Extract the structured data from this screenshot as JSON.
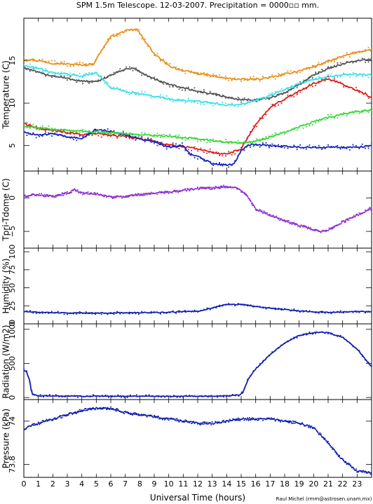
{
  "title": "SPM 1.5m Telescope. 12-03-2007. Precipitation = 0000▫▫ mm.",
  "xlabel": "Universal Time (hours)",
  "credit": "Raul Michel (rmm@astrosen.unam.mx)",
  "x_ticks": [
    "0",
    "1",
    "2",
    "3",
    "4",
    "5",
    "6",
    "7",
    "8",
    "9",
    "10",
    "11",
    "12",
    "13",
    "14",
    "15",
    "16",
    "17",
    "18",
    "19",
    "20",
    "21",
    "22",
    "23"
  ],
  "colors": {
    "orange": "#e8901a",
    "gray": "#555555",
    "cyan": "#3fe0e8",
    "red": "#dd1c1c",
    "blue": "#1424c0",
    "green": "#38d838",
    "purple": "#8e2fd0",
    "navy": "#1020b0"
  },
  "chart_data": [
    {
      "type": "line",
      "ylabel": "Temperature (C)",
      "xlim": [
        0,
        24
      ],
      "ylim": [
        2,
        20
      ],
      "y_ticks": [
        "5",
        "10",
        "15"
      ],
      "y_tick_values": [
        5,
        10,
        15
      ],
      "series": [
        {
          "color": "orange",
          "x": [
            0,
            1,
            2,
            3,
            4,
            4.8,
            5.5,
            6,
            7,
            7.8,
            8.5,
            9,
            10,
            11,
            12,
            13,
            14,
            15,
            16,
            17,
            18,
            19,
            20,
            21,
            22,
            23,
            24
          ],
          "y": [
            15.2,
            15.0,
            14.7,
            14.6,
            14.5,
            14.6,
            16.6,
            17.8,
            18.5,
            18.7,
            17.0,
            15.8,
            14.4,
            13.8,
            13.5,
            13.2,
            12.9,
            12.8,
            12.8,
            13.0,
            13.4,
            13.8,
            14.3,
            14.9,
            15.5,
            16.0,
            16.3
          ]
        },
        {
          "color": "gray",
          "x": [
            0,
            1,
            2,
            3,
            4,
            5,
            6,
            7,
            7.6,
            8,
            9,
            10,
            11,
            12,
            13,
            14,
            15,
            16,
            17,
            18,
            19,
            20,
            21,
            22,
            23,
            24
          ],
          "y": [
            14.2,
            13.6,
            13.2,
            12.9,
            12.6,
            12.5,
            13.3,
            14.0,
            14.1,
            13.7,
            12.8,
            12.2,
            11.8,
            11.4,
            11.1,
            10.7,
            10.4,
            10.4,
            10.6,
            11.2,
            12.2,
            13.3,
            14.1,
            14.6,
            15.0,
            15.2
          ]
        },
        {
          "color": "cyan",
          "x": [
            0,
            1,
            2,
            3,
            4,
            5,
            6,
            7,
            8,
            9,
            10,
            11,
            12,
            13,
            14,
            15,
            16,
            17,
            18,
            19,
            20,
            21,
            22,
            23,
            24
          ],
          "y": [
            14.4,
            14.1,
            13.6,
            13.4,
            13.2,
            13.6,
            11.8,
            11.4,
            11.1,
            10.8,
            10.5,
            10.3,
            10.2,
            10.0,
            9.8,
            9.9,
            10.3,
            10.9,
            11.6,
            12.3,
            12.8,
            13.1,
            13.3,
            13.4,
            13.3
          ]
        },
        {
          "color": "red",
          "x": [
            0,
            1,
            2,
            3,
            4,
            5,
            6,
            7,
            8,
            9,
            10,
            11,
            12,
            13,
            14,
            15,
            15.5,
            16,
            17,
            18,
            19,
            20,
            21,
            22,
            23,
            24
          ],
          "y": [
            7.6,
            7.0,
            6.8,
            6.5,
            6.3,
            6.4,
            6.2,
            6.1,
            5.8,
            5.5,
            5.1,
            4.9,
            4.6,
            4.2,
            4.0,
            4.6,
            6.1,
            7.4,
            9.5,
            10.5,
            11.4,
            12.3,
            12.9,
            12.2,
            11.5,
            10.7
          ]
        },
        {
          "color": "blue",
          "x": [
            0,
            1,
            2,
            3,
            4,
            5,
            6,
            7,
            8,
            9,
            10,
            11,
            11.5,
            12,
            13,
            14,
            14.5,
            15,
            15.5,
            16,
            17,
            18,
            19,
            20,
            21,
            22,
            23,
            24
          ],
          "y": [
            6.6,
            6.2,
            6.4,
            6.0,
            5.9,
            6.9,
            6.7,
            6.3,
            5.8,
            5.4,
            4.8,
            5.0,
            3.9,
            3.7,
            2.9,
            2.7,
            2.8,
            4.4,
            5.1,
            5.1,
            5.0,
            4.9,
            4.8,
            4.8,
            4.8,
            4.8,
            4.8,
            5.0
          ]
        },
        {
          "color": "green",
          "x": [
            0,
            1,
            2,
            3,
            4,
            5,
            6,
            7,
            8,
            9,
            10,
            11,
            12,
            13,
            14,
            15,
            16,
            17,
            18,
            19,
            20,
            21,
            22,
            23,
            24
          ],
          "y": [
            7.3,
            7.1,
            6.9,
            6.8,
            6.7,
            6.6,
            6.5,
            6.4,
            6.3,
            6.2,
            6.1,
            5.9,
            5.8,
            5.6,
            5.4,
            5.3,
            5.5,
            6.0,
            6.6,
            7.2,
            7.8,
            8.3,
            8.7,
            9.0,
            9.2
          ]
        }
      ]
    },
    {
      "type": "scatter",
      "ylabel": "Tpri-Tdome (C)",
      "xlim": [
        0,
        24
      ],
      "ylim": [
        -7.5,
        4
      ],
      "y_ticks": [
        "−5",
        "0"
      ],
      "y_tick_values": [
        -5,
        0
      ],
      "series": [
        {
          "color": "purple",
          "x": [
            0,
            1,
            2,
            3,
            3.5,
            4,
            5,
            6,
            7,
            8,
            9,
            10,
            11,
            12,
            13,
            14,
            14.7,
            15.3,
            16,
            17,
            18,
            19,
            20,
            20.5,
            21,
            22,
            23,
            24
          ],
          "y": [
            0.2,
            0.5,
            0.2,
            0.7,
            1.2,
            0.7,
            0.6,
            0.1,
            0.2,
            0.5,
            0.7,
            0.8,
            1.1,
            1.4,
            1.5,
            1.7,
            1.5,
            0.6,
            -1.6,
            -2.6,
            -3.4,
            -4.1,
            -4.8,
            -5.1,
            -4.8,
            -3.6,
            -2.6,
            -1.5
          ]
        }
      ]
    },
    {
      "type": "line",
      "ylabel": "Humidity (%)",
      "xlim": [
        0,
        24
      ],
      "ylim": [
        0,
        105
      ],
      "y_ticks": [
        "0",
        "25",
        "50",
        "75",
        "100"
      ],
      "y_tick_values": [
        0,
        25,
        50,
        75,
        100
      ],
      "series": [
        {
          "color": "navy",
          "x": [
            0,
            1,
            2,
            3,
            4,
            5,
            6,
            7,
            8,
            9,
            10,
            11,
            12,
            13,
            14,
            15,
            16,
            17,
            18,
            19,
            20,
            21,
            22,
            23,
            24
          ],
          "y": [
            17,
            16,
            15.5,
            15,
            15,
            15,
            15,
            15.5,
            15.5,
            15.5,
            16,
            17,
            17.5,
            22,
            27,
            27,
            24,
            22,
            20,
            18,
            16.5,
            16,
            16.5,
            17,
            17
          ]
        }
      ]
    },
    {
      "type": "line",
      "ylabel": "Radiation (W/m2)",
      "xlim": [
        0,
        24
      ],
      "ylim": [
        -30,
        1080
      ],
      "y_ticks": [
        "0",
        "500",
        "1000"
      ],
      "y_tick_values": [
        0,
        500,
        1000
      ],
      "series": [
        {
          "color": "navy",
          "x": [
            0,
            0.2,
            0.4,
            0.5,
            0.6,
            1,
            3,
            5,
            7,
            9,
            11,
            13,
            14,
            14.9,
            15.1,
            15.5,
            16,
            17,
            18,
            19,
            20,
            20.5,
            21,
            22,
            23,
            24
          ],
          "y": [
            400,
            370,
            250,
            120,
            50,
            25,
            20,
            20,
            20,
            20,
            20,
            20,
            22,
            40,
            70,
            280,
            420,
            630,
            800,
            910,
            950,
            960,
            950,
            880,
            710,
            450
          ]
        }
      ]
    },
    {
      "type": "scatter",
      "ylabel": "Pressure (kPa)",
      "xlim": [
        0,
        24
      ],
      "ylim": [
        73.74,
        74.1
      ],
      "y_ticks": [
        "73.8",
        "74"
      ],
      "y_tick_values": [
        73.8,
        74.0
      ],
      "series": [
        {
          "color": "navy",
          "x": [
            0,
            0.5,
            1,
            2,
            3,
            4,
            5,
            6,
            7,
            8,
            9,
            10,
            11,
            12,
            13,
            14,
            15,
            16,
            17,
            18,
            19,
            20,
            21,
            22,
            23,
            24
          ],
          "y": [
            73.96,
            73.98,
            73.99,
            74.01,
            74.03,
            74.05,
            74.06,
            74.06,
            74.04,
            74.03,
            74.02,
            74.01,
            74.0,
            73.99,
            73.99,
            74.0,
            74.01,
            74.01,
            74.01,
            74.0,
            73.99,
            73.97,
            73.9,
            73.82,
            73.77,
            73.76
          ]
        }
      ]
    }
  ]
}
